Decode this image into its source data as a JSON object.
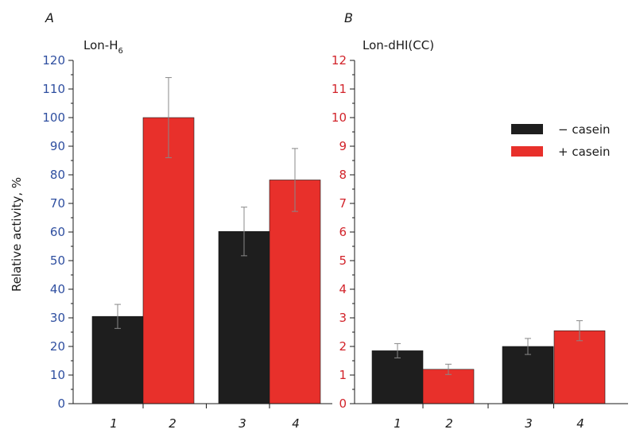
{
  "colors": {
    "minus_casein": "#1e1e1e",
    "plus_casein": "#e8302b",
    "axis": "#1a1a1a",
    "tick_left": "#2f4fa0",
    "tick_right": "#d2232a",
    "errorbar": "#888888"
  },
  "ylabel": "Relative activity, %",
  "legend": {
    "placement": "top-right of panel B",
    "items": [
      {
        "label": "− casein",
        "color": "#1e1e1e"
      },
      {
        "label": "+ casein",
        "color": "#e8302b"
      }
    ]
  },
  "chart_data": [
    {
      "type": "bar",
      "panel": "A",
      "title_main": "Lon-H",
      "title_sub": "6",
      "categories": [
        "1",
        "2",
        "3",
        "4"
      ],
      "values": [
        30.5,
        100,
        60.2,
        78.2
      ],
      "errors": [
        4.2,
        14,
        8.5,
        11
      ],
      "colors": [
        "#1e1e1e",
        "#e8302b",
        "#1e1e1e",
        "#e8302b"
      ],
      "ylim": [
        0,
        120
      ],
      "yticks": [
        0,
        10,
        20,
        30,
        40,
        50,
        60,
        70,
        80,
        90,
        100,
        110,
        120
      ],
      "tick_color": "#2f4fa0"
    },
    {
      "type": "bar",
      "panel": "B",
      "title_main": "Lon-dHI(CC)",
      "title_sub": "",
      "categories": [
        "1",
        "2",
        "3",
        "4"
      ],
      "values": [
        1.85,
        1.2,
        2.0,
        2.55
      ],
      "errors": [
        0.25,
        0.18,
        0.28,
        0.35
      ],
      "colors": [
        "#1e1e1e",
        "#e8302b",
        "#1e1e1e",
        "#e8302b"
      ],
      "ylim": [
        0,
        12
      ],
      "yticks": [
        0,
        1,
        2,
        3,
        4,
        5,
        6,
        7,
        8,
        9,
        10,
        11,
        12
      ],
      "tick_color": "#d2232a"
    }
  ]
}
